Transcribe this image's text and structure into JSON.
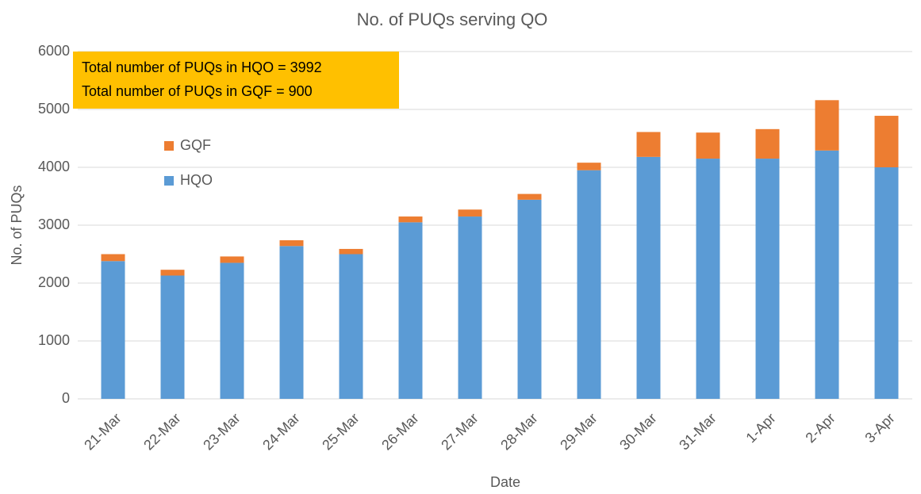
{
  "chart_data": {
    "type": "bar",
    "stacked": true,
    "title": "No. of PUQs serving QO",
    "x_label": "Date",
    "y_label": "No. of PUQs",
    "annotations": [
      "Total number of PUQs in HQO = 3992",
      "Total number of PUQs in GQF = 900"
    ],
    "categories": [
      "21-Mar",
      "22-Mar",
      "23-Mar",
      "24-Mar",
      "25-Mar",
      "26-Mar",
      "27-Mar",
      "28-Mar",
      "29-Mar",
      "30-Mar",
      "31-Mar",
      "1-Apr",
      "2-Apr",
      "3-Apr"
    ],
    "series": [
      {
        "name": "HQO",
        "color": "#5b9bd5",
        "values": [
          2380,
          2130,
          2350,
          2640,
          2500,
          3050,
          3150,
          3440,
          3950,
          4180,
          4150,
          4150,
          4290,
          4000
        ]
      },
      {
        "name": "GQF",
        "color": "#ed7d31",
        "values": [
          120,
          100,
          110,
          100,
          90,
          100,
          120,
          100,
          130,
          430,
          450,
          510,
          870,
          890
        ]
      }
    ],
    "ylim": [
      0,
      6000
    ],
    "yticks": [
      0,
      1000,
      2000,
      3000,
      4000,
      5000,
      6000
    ],
    "grid": true,
    "legend": "upper left"
  }
}
